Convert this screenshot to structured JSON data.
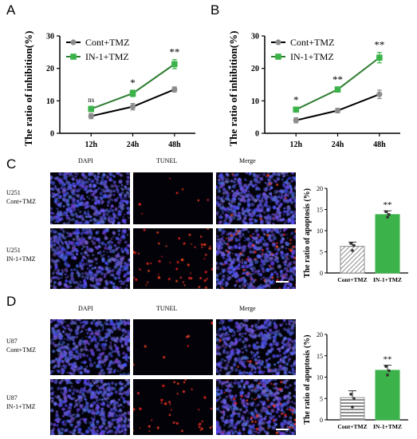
{
  "panels": {
    "A": "A",
    "B": "B",
    "C": "C",
    "D": "D"
  },
  "micro": {
    "headers": [
      "DAPI",
      "TUNEL",
      "Merge"
    ],
    "C": {
      "row1": [
        "U251",
        "Cont+TMZ"
      ],
      "row2": [
        "U251",
        "IN-1+TMZ"
      ]
    },
    "D": {
      "row1": [
        "U87",
        "Cont+TMZ"
      ],
      "row2": [
        "U87",
        "IN-1+TMZ"
      ]
    }
  },
  "colors": {
    "control": "#8c8c8c",
    "control_line": "#000000",
    "treatment": "#3cb34a",
    "treatment_line": "#2e7d32",
    "dapi": "#2a2f8c",
    "tunel": "#d2281e"
  },
  "chart_data": [
    {
      "panel": "A",
      "type": "line",
      "categories": [
        "12h",
        "24h",
        "48h"
      ],
      "ylabel": "The ratio of inhibition(%)",
      "ylim": [
        0,
        30
      ],
      "yticks": [
        0,
        10,
        20,
        30
      ],
      "legend": "top-left",
      "series": [
        {
          "name": "Cont+TMZ",
          "values": [
            5.3,
            8.2,
            13.5
          ],
          "errors": [
            0.8,
            1.0,
            0.8
          ]
        },
        {
          "name": "IN-1+TMZ",
          "values": [
            7.5,
            12.3,
            21.3
          ],
          "errors": [
            0.8,
            1.0,
            1.4
          ]
        }
      ],
      "annotations": [
        "ns",
        "*",
        "**"
      ]
    },
    {
      "panel": "B",
      "type": "line",
      "categories": [
        "12h",
        "24h",
        "48h"
      ],
      "ylabel": "The ratio of inhibition(%)",
      "ylim": [
        0,
        30
      ],
      "yticks": [
        0,
        10,
        20,
        30
      ],
      "legend": "top-left",
      "series": [
        {
          "name": "Cont+TMZ",
          "values": [
            4.0,
            7.0,
            12.0
          ],
          "errors": [
            0.8,
            0.7,
            1.3
          ]
        },
        {
          "name": "IN-1+TMZ",
          "values": [
            7.3,
            13.5,
            23.3
          ],
          "errors": [
            0.7,
            0.8,
            1.6
          ]
        }
      ],
      "annotations": [
        "*",
        "**",
        "**"
      ]
    },
    {
      "panel": "C",
      "type": "bar",
      "categories": [
        "Cont+TMZ",
        "IN-1+TMZ"
      ],
      "values": [
        6.3,
        13.8
      ],
      "errors": [
        1.0,
        0.9
      ],
      "points": [
        [
          7.0,
          5.3,
          6.5
        ],
        [
          14.5,
          13.2,
          13.8
        ]
      ],
      "ylabel": "The ratio of apoptosis (%)",
      "ylim": [
        0,
        20
      ],
      "yticks": [
        0,
        5,
        10,
        15,
        20
      ],
      "annotations": [
        "",
        "**"
      ]
    },
    {
      "panel": "D",
      "type": "bar",
      "categories": [
        "Cont+TMZ",
        "IN-1+TMZ"
      ],
      "values": [
        5.2,
        11.6
      ],
      "errors": [
        1.6,
        1.2
      ],
      "points": [
        [
          6.0,
          3.0,
          5.0
        ],
        [
          12.5,
          10.5,
          11.5
        ]
      ],
      "ylabel": "The ratio of apoptosis (%)",
      "ylim": [
        0,
        20
      ],
      "yticks": [
        0,
        5,
        10,
        15,
        20
      ],
      "annotations": [
        "",
        "**"
      ]
    }
  ]
}
